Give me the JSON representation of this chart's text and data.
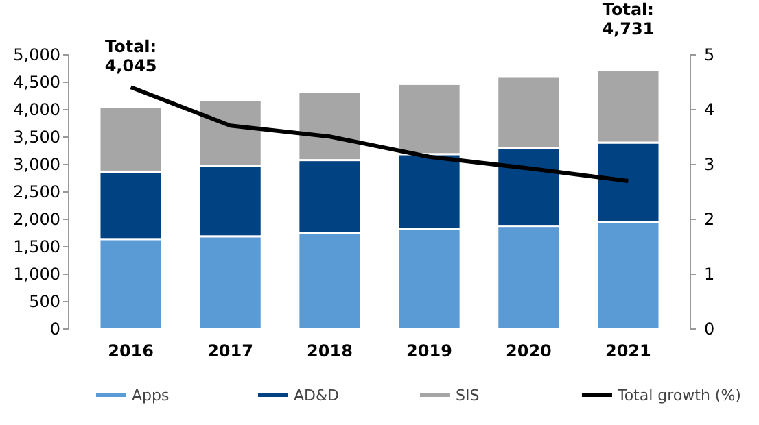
{
  "chart_data": {
    "type": "bar",
    "stacked": true,
    "categories": [
      "2016",
      "2017",
      "2018",
      "2019",
      "2020",
      "2021"
    ],
    "series": [
      {
        "name": "Apps",
        "color": "#5b9bd5",
        "values": [
          1640,
          1690,
          1750,
          1820,
          1880,
          1950
        ]
      },
      {
        "name": "AD&D",
        "color": "#004282",
        "values": [
          1230,
          1280,
          1330,
          1370,
          1420,
          1450
        ]
      },
      {
        "name": "SIS",
        "color": "#a6a6a6",
        "values": [
          1180,
          1210,
          1240,
          1280,
          1300,
          1330
        ]
      },
      {
        "name": "Total growth (%)",
        "type": "line",
        "axis": "y2",
        "color": "#000000",
        "values": [
          4.41,
          3.71,
          3.51,
          3.14,
          2.93,
          2.7
        ]
      }
    ],
    "ylim": [
      0,
      5000
    ],
    "yticks": [
      0,
      500,
      {
        "value": 1000,
        "label": "1,000"
      },
      {
        "value": 1500,
        "label": "1,500"
      },
      {
        "value": 2000,
        "label": "2,000"
      },
      {
        "value": 2500,
        "label": "2,500"
      },
      {
        "value": 3000,
        "label": "3,000"
      },
      {
        "value": 3500,
        "label": "3,500"
      },
      {
        "value": 4000,
        "label": "4,000"
      },
      {
        "value": 4500,
        "label": "4,500"
      },
      {
        "value": 5000,
        "label": "5,000"
      }
    ],
    "y2lim": [
      0,
      5
    ],
    "y2ticks": [
      0,
      1,
      2,
      3,
      4,
      5
    ],
    "annotations": [
      {
        "text": "Total: 4,045",
        "x": "2016",
        "y": 4045
      },
      {
        "text": "Total: 4,731",
        "x": "2021",
        "y": 4731
      }
    ],
    "legend": "bottom",
    "grid": false,
    "marker": "none",
    "line_style": "solid"
  }
}
